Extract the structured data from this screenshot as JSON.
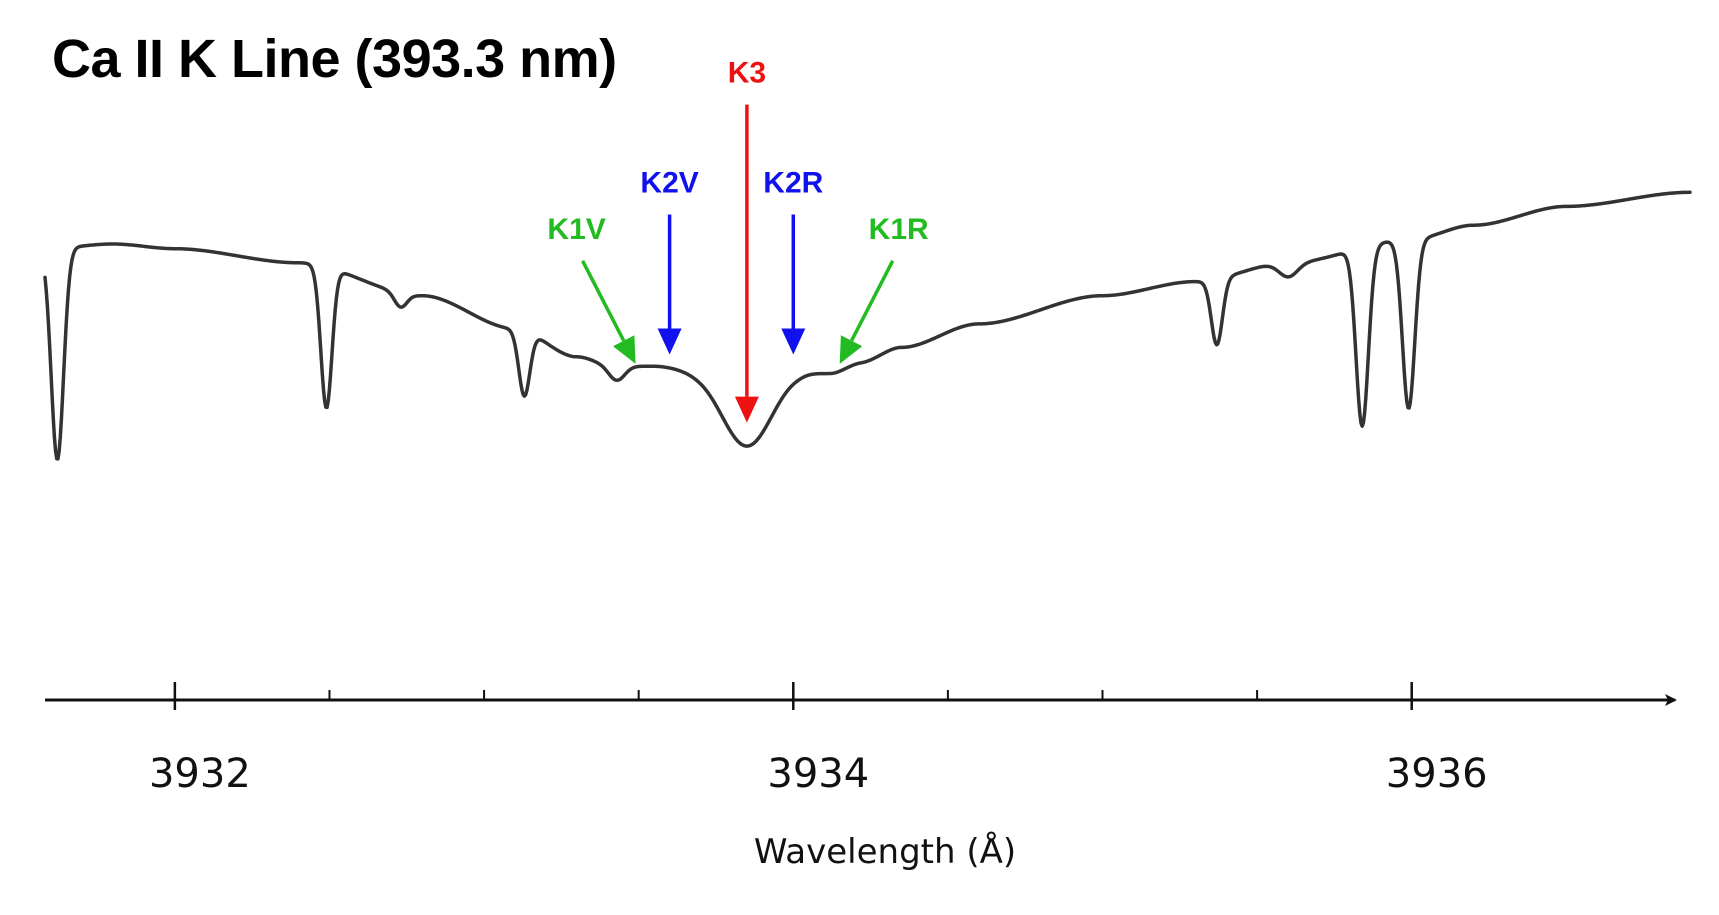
{
  "chart_data": {
    "type": "line",
    "title": "Ca II K Line (393.3 nm)",
    "xlabel": "Wavelength (Å)",
    "ylabel": "",
    "xlim": [
      3931.58,
      3936.9
    ],
    "ylim": [
      0,
      1
    ],
    "grid": false,
    "x_major_ticks": [
      3932,
      3934,
      3936
    ],
    "x_tick_labels": [
      "3932",
      "3934",
      "3936"
    ],
    "x_minor_ticks": [
      3932.5,
      3933.0,
      3933.5,
      3934.5,
      3935.0,
      3935.5
    ],
    "series": [
      {
        "color": "#333333",
        "continuum": [
          [
            3931.58,
            0.79
          ],
          [
            3931.8,
            0.8
          ],
          [
            3932.0,
            0.79
          ],
          [
            3932.4,
            0.76
          ],
          [
            3932.8,
            0.69
          ],
          [
            3933.1,
            0.62
          ],
          [
            3933.3,
            0.56
          ],
          [
            3933.42,
            0.54
          ],
          [
            3933.55,
            0.54
          ],
          [
            3933.7,
            0.53
          ],
          [
            3934.0,
            0.53
          ],
          [
            3934.12,
            0.545
          ],
          [
            3934.22,
            0.55
          ],
          [
            3934.35,
            0.58
          ],
          [
            3934.6,
            0.63
          ],
          [
            3935.0,
            0.69
          ],
          [
            3935.3,
            0.72
          ],
          [
            3935.6,
            0.76
          ],
          [
            3936.0,
            0.81
          ],
          [
            3936.2,
            0.84
          ],
          [
            3936.5,
            0.88
          ],
          [
            3936.9,
            0.91
          ]
        ],
        "absorption_features": [
          {
            "center": 3931.62,
            "depth": 0.45,
            "width": 0.02
          },
          {
            "center": 3932.49,
            "depth": 0.3,
            "width": 0.018
          },
          {
            "center": 3932.73,
            "depth": 0.03,
            "width": 0.02
          },
          {
            "center": 3933.13,
            "depth": 0.14,
            "width": 0.018
          },
          {
            "center": 3933.43,
            "depth": 0.03,
            "width": 0.025
          },
          {
            "center": 3933.85,
            "depth": 0.16,
            "width": 0.08
          },
          {
            "center": 3934.12,
            "depth": 0.02,
            "width": 0.05
          },
          {
            "center": 3935.37,
            "depth": 0.14,
            "width": 0.018
          },
          {
            "center": 3935.6,
            "depth": 0.03,
            "width": 0.03
          },
          {
            "center": 3935.84,
            "depth": 0.38,
            "width": 0.02
          },
          {
            "center": 3935.99,
            "depth": 0.36,
            "width": 0.02
          }
        ]
      }
    ],
    "annotations": [
      {
        "label": "K1V",
        "color": "#22bb22",
        "x": 3933.49,
        "y": 0.545,
        "direction": "diagonal-right"
      },
      {
        "label": "K2V",
        "color": "#1111ee",
        "x": 3933.6,
        "y": 0.565,
        "direction": "down"
      },
      {
        "label": "K3",
        "color": "#ee1111",
        "x": 3933.85,
        "y": 0.42,
        "direction": "down"
      },
      {
        "label": "K2R",
        "color": "#1111ee",
        "x": 3934.0,
        "y": 0.565,
        "direction": "down"
      },
      {
        "label": "K1R",
        "color": "#22bb22",
        "x": 3934.15,
        "y": 0.545,
        "direction": "diagonal-left"
      }
    ]
  }
}
